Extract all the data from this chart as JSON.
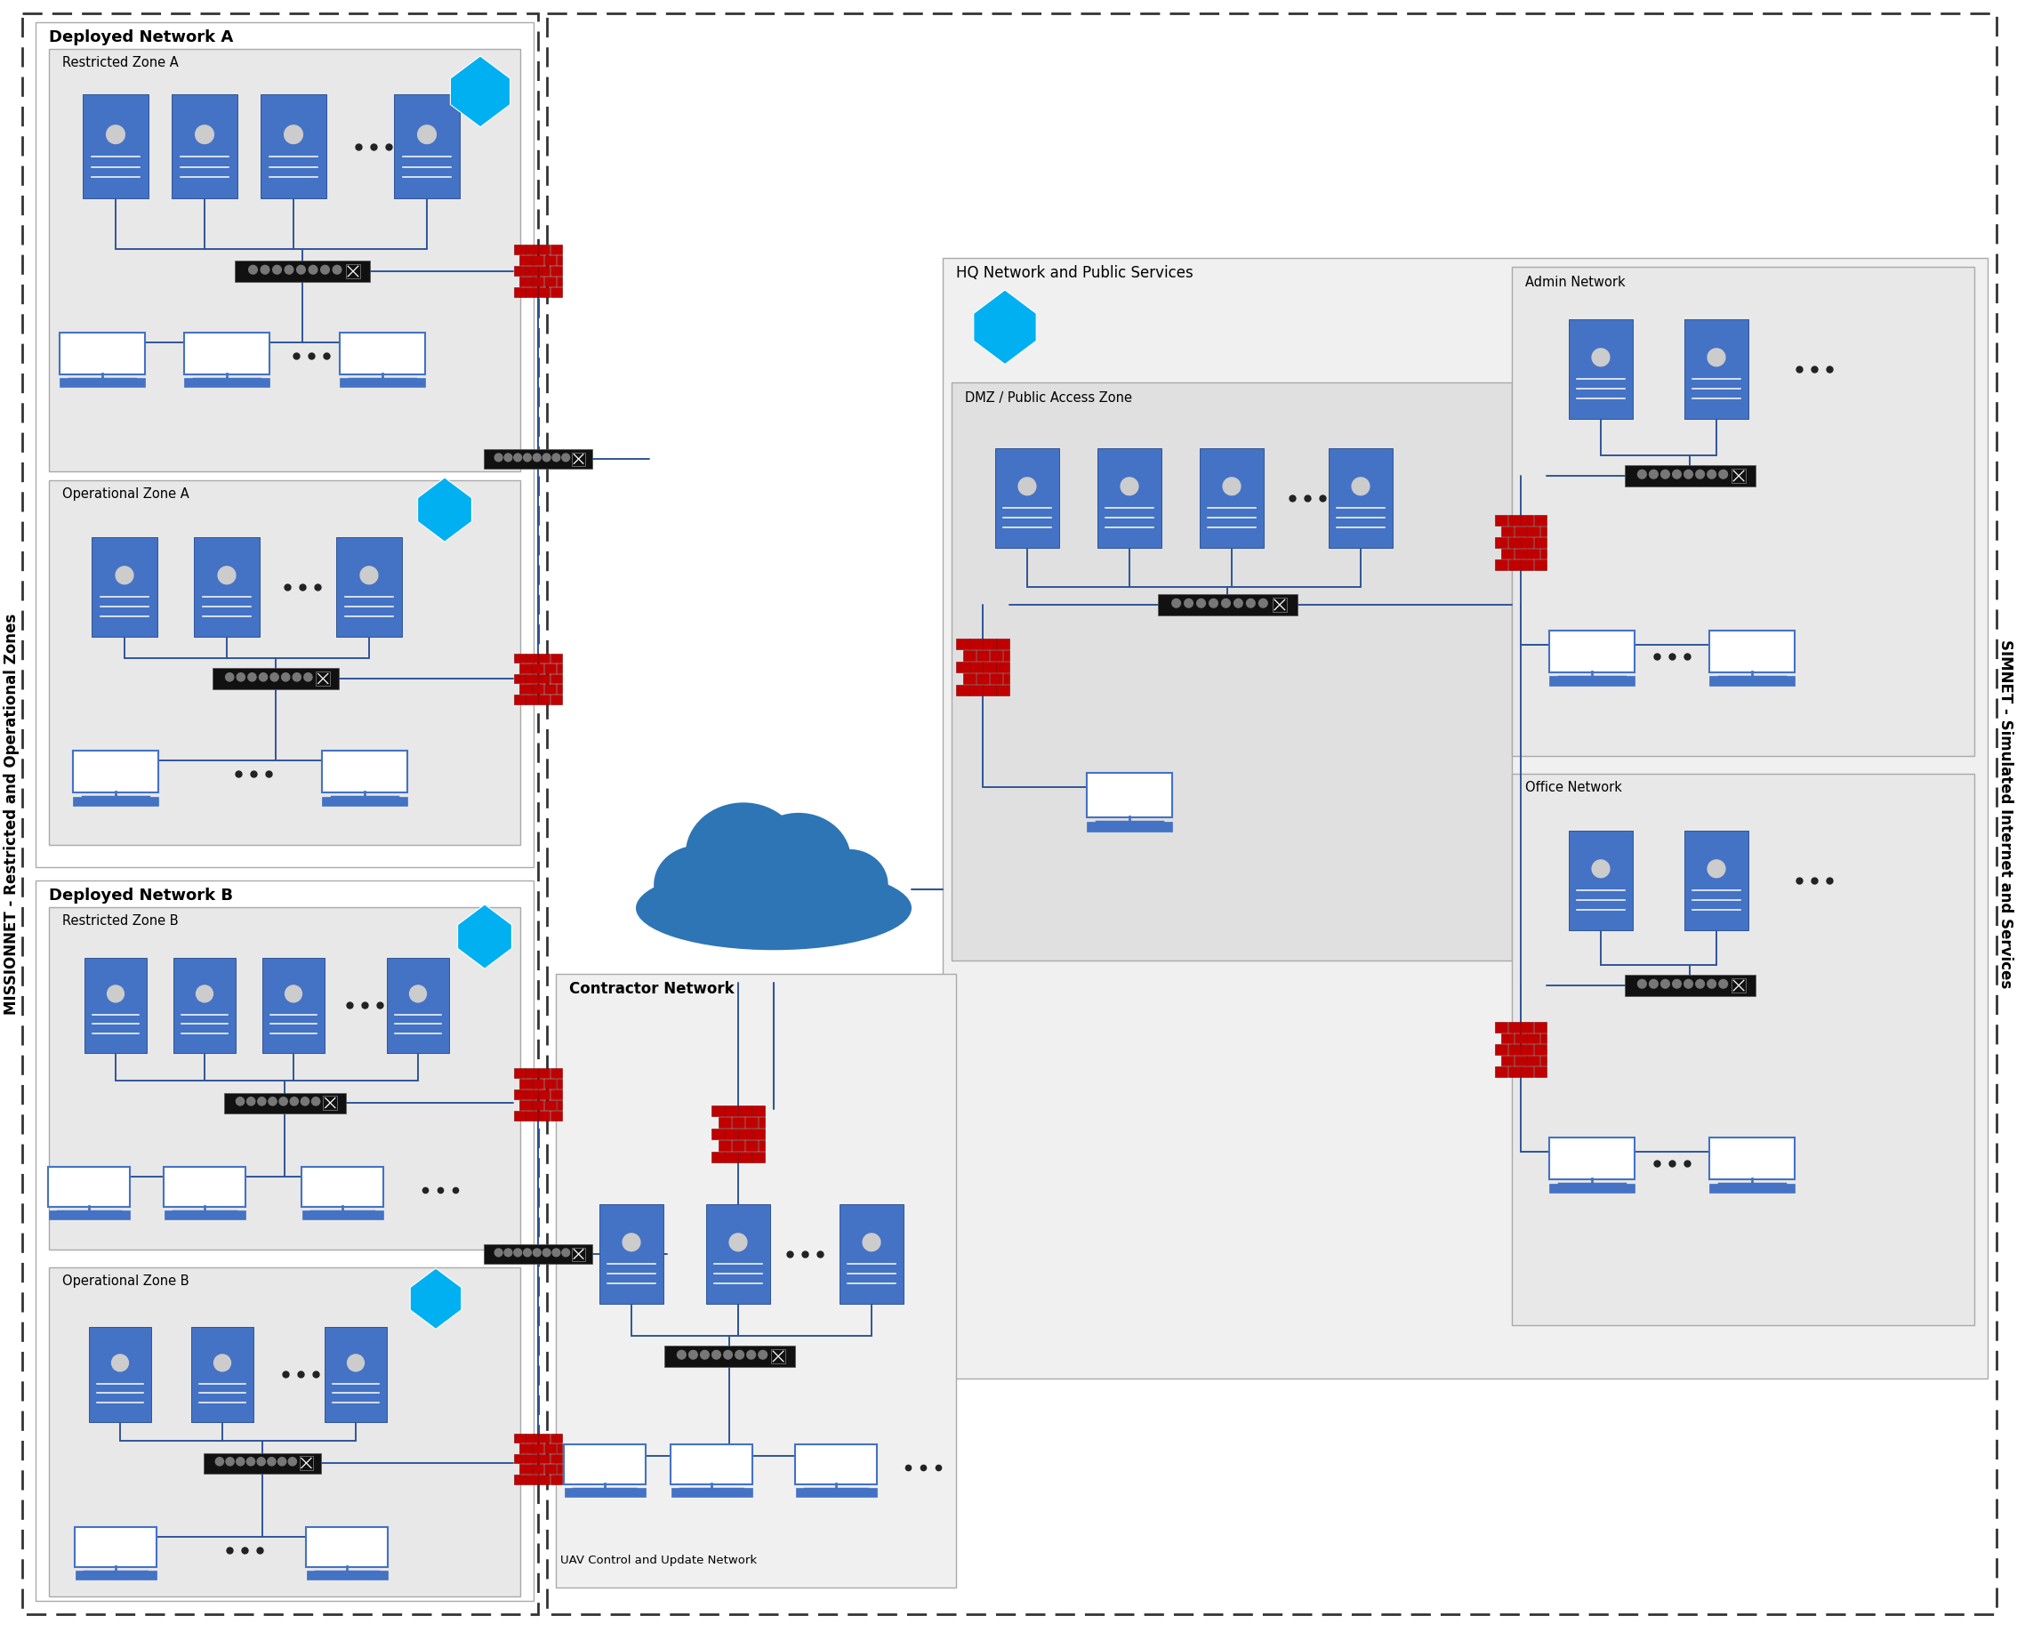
{
  "bg_color": "#ffffff",
  "blue_server": "#4472C4",
  "blue_shield": "#00B0F0",
  "red_brick": "#C00000",
  "dark_red": "#800000",
  "switch_color": "#111111",
  "conn_color": "#2F5597",
  "cloud_color": "#2E75B6",
  "zone_fill": "#e8e8e8",
  "net_fill": "#f0f0f0",
  "hq_fill": "#f0f0f0",
  "white": "#ffffff",
  "label_missionnet": "MISSIONNET - Restricted and Operational Zones",
  "label_simnet": "SIMNET - Simulated Internet and Services",
  "label_dep_a": "Deployed Network A",
  "label_dep_b": "Deployed Network B",
  "label_rest_a": "Restricted Zone A",
  "label_op_a": "Operational Zone A",
  "label_rest_b": "Restricted Zone B",
  "label_op_b": "Operational Zone B",
  "label_hq": "HQ Network and Public Services",
  "label_dmz": "DMZ / Public Access Zone",
  "label_admin": "Admin Network",
  "label_office": "Office Network",
  "label_contractor": "Contractor Network",
  "label_uav": "UAV Control and Update Network"
}
